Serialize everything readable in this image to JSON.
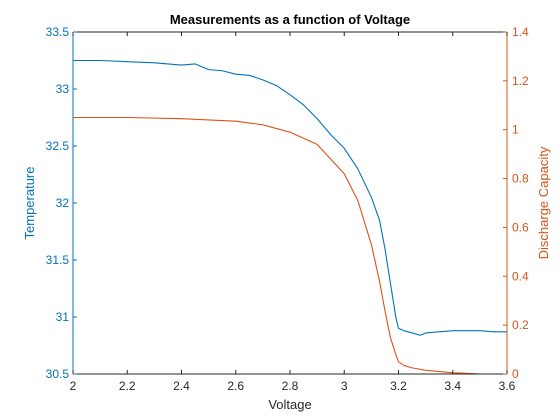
{
  "chart_data": {
    "type": "line",
    "title": "Measurements as a function of Voltage",
    "xlabel": "Voltage",
    "xlim": [
      2,
      3.6
    ],
    "x_ticks": [
      "2",
      "2.2",
      "2.4",
      "2.6",
      "2.8",
      "3",
      "3.2",
      "3.4",
      "3.6"
    ],
    "left_axis": {
      "label": "Temperature",
      "lim": [
        30.5,
        33.5
      ],
      "ticks": [
        "30.5",
        "31",
        "31.5",
        "32",
        "32.5",
        "33",
        "33.5"
      ],
      "color": "#0072BD"
    },
    "right_axis": {
      "label": "Discharge Capacity",
      "lim": [
        0,
        1.4
      ],
      "ticks": [
        "0",
        "0.2",
        "0.4",
        "0.6",
        "0.8",
        "1",
        "1.2",
        "1.4"
      ],
      "color": "#D95319"
    },
    "grid": false,
    "series": [
      {
        "axis": "left",
        "color": "#0072BD",
        "x": [
          2.0,
          2.1,
          2.2,
          2.3,
          2.4,
          2.45,
          2.5,
          2.55,
          2.6,
          2.65,
          2.7,
          2.75,
          2.8,
          2.85,
          2.9,
          2.95,
          3.0,
          3.05,
          3.1,
          3.13,
          3.15,
          3.17,
          3.19,
          3.2,
          3.22,
          3.25,
          3.28,
          3.3,
          3.35,
          3.4,
          3.45,
          3.5,
          3.55,
          3.6
        ],
        "y": [
          33.25,
          33.25,
          33.24,
          33.23,
          33.21,
          33.22,
          33.17,
          33.16,
          33.13,
          33.12,
          33.08,
          33.03,
          32.95,
          32.86,
          32.74,
          32.6,
          32.48,
          32.3,
          32.05,
          31.85,
          31.6,
          31.3,
          31.0,
          30.9,
          30.88,
          30.86,
          30.84,
          30.86,
          30.87,
          30.88,
          30.88,
          30.88,
          30.87,
          30.87
        ]
      },
      {
        "axis": "right",
        "color": "#D95319",
        "x": [
          2.0,
          2.2,
          2.4,
          2.5,
          2.6,
          2.7,
          2.8,
          2.9,
          3.0,
          3.05,
          3.1,
          3.13,
          3.15,
          3.17,
          3.19,
          3.2,
          3.22,
          3.25,
          3.3,
          3.35,
          3.4,
          3.45,
          3.5,
          3.55,
          3.6
        ],
        "y": [
          1.05,
          1.05,
          1.045,
          1.04,
          1.035,
          1.02,
          0.99,
          0.94,
          0.82,
          0.71,
          0.53,
          0.38,
          0.26,
          0.15,
          0.08,
          0.05,
          0.035,
          0.025,
          0.015,
          0.01,
          0.005,
          0.003,
          0.0,
          0.0,
          0.0
        ]
      }
    ]
  }
}
